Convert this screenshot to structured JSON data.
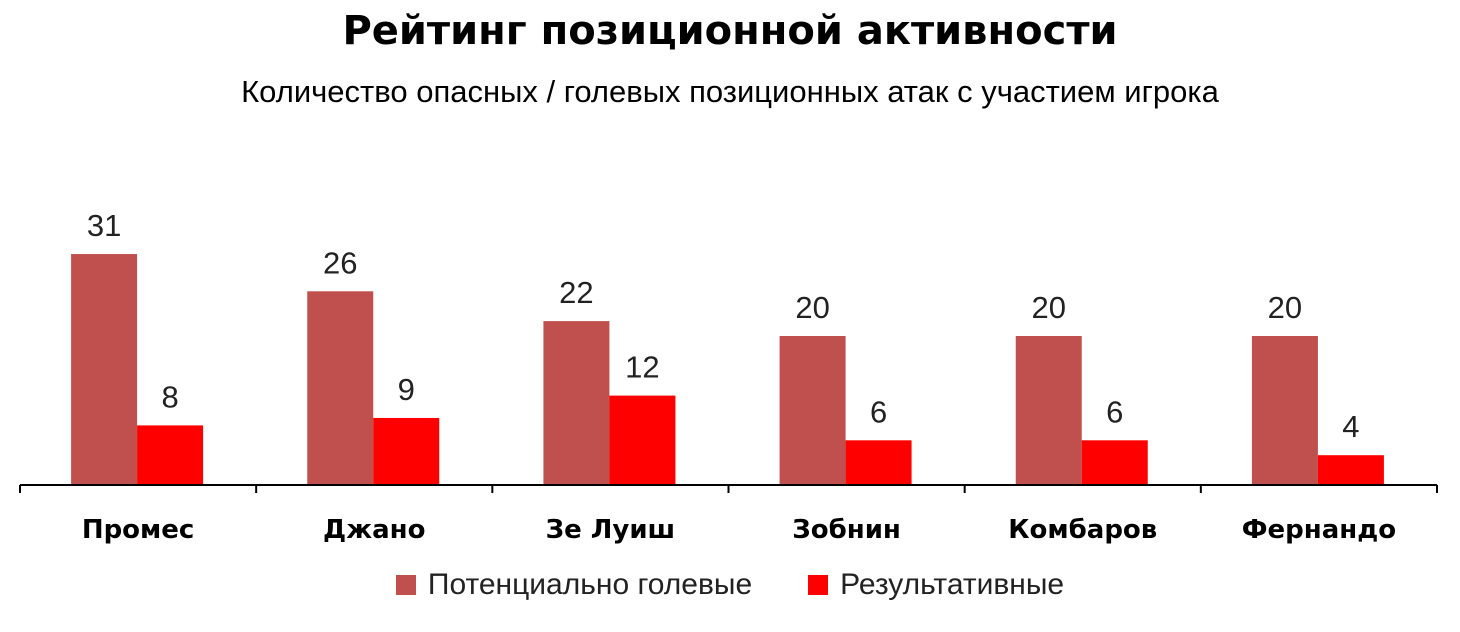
{
  "chart_data": {
    "type": "bar",
    "title": "Рейтинг позиционной активности",
    "subtitle": "Количество опасных / голевых позиционных атак с участием игрока",
    "categories": [
      "Промес",
      "Джано",
      "Зе Луиш",
      "Зобнин",
      "Комбаров",
      "Фернандо"
    ],
    "series": [
      {
        "name": "Потенциально голевые",
        "values": [
          31,
          26,
          22,
          20,
          20,
          20
        ],
        "color": "#c0504d"
      },
      {
        "name": "Результативные",
        "values": [
          8,
          9,
          12,
          6,
          6,
          4
        ],
        "color": "#ff0000"
      }
    ],
    "ylim": [
      0,
      31
    ],
    "legend_position": "bottom",
    "grid": false
  }
}
